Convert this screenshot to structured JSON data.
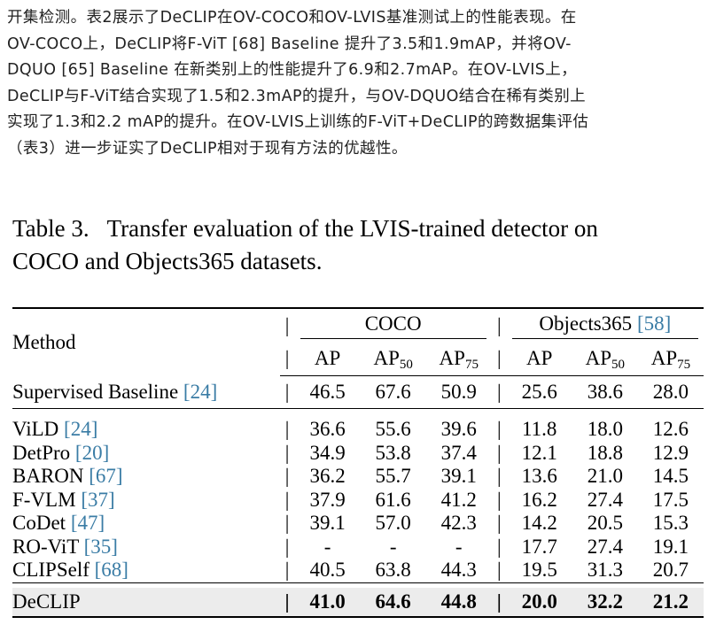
{
  "paragraph": [
    "开集检测。表2展示了DeCLIP在OV-COCO和OV-LVIS基准测试上的性能表现。在",
    "OV-COCO上，DeCLIP将F-ViT [68] Baseline 提升了3.5和1.9mAP，并将OV-",
    "DQUO [65] Baseline 在新类别上的性能提升了6.9和2.7mAP。在OV-LVIS上，",
    "DeCLIP与F-ViT结合实现了1.5和2.3mAP的提升，与OV-DQUO结合在稀有类别上",
    "实现了1.3和2.2 mAP的提升。在OV-LVIS上训练的F-ViT+DeCLIP的跨数据集评估",
    "（表3）进一步证实了DeCLIP相对于现有方法的优越性。"
  ],
  "caption": {
    "label": "Table 3.",
    "line1": "Transfer evaluation of the LVIS-trained detector on",
    "line2": "COCO and Objects365 datasets."
  },
  "table": {
    "method_header": "Method",
    "groups": [
      {
        "name": "COCO",
        "cite": ""
      },
      {
        "name": "Objects365 ",
        "cite": "[58]"
      }
    ],
    "columns": [
      {
        "base": "AP",
        "sub": ""
      },
      {
        "base": "AP",
        "sub": "50"
      },
      {
        "base": "AP",
        "sub": "75"
      },
      {
        "base": "AP",
        "sub": ""
      },
      {
        "base": "AP",
        "sub": "50"
      },
      {
        "base": "AP",
        "sub": "75"
      }
    ],
    "supervised": {
      "name": "Supervised Baseline ",
      "cite": "[24]",
      "values": [
        "46.5",
        "67.6",
        "50.9",
        "25.6",
        "38.6",
        "28.0"
      ]
    },
    "rows": [
      {
        "name": "ViLD ",
        "cite": "[24]",
        "values": [
          "36.6",
          "55.6",
          "39.6",
          "11.8",
          "18.0",
          "12.6"
        ]
      },
      {
        "name": "DetPro ",
        "cite": "[20]",
        "values": [
          "34.9",
          "53.8",
          "37.4",
          "12.1",
          "18.8",
          "12.9"
        ]
      },
      {
        "name": "BARON ",
        "cite": "[67]",
        "values": [
          "36.2",
          "55.7",
          "39.1",
          "13.6",
          "21.0",
          "14.5"
        ]
      },
      {
        "name": "F-VLM ",
        "cite": "[37]",
        "values": [
          "37.9",
          "61.6",
          "41.2",
          "16.2",
          "27.4",
          "17.5"
        ]
      },
      {
        "name": "CoDet ",
        "cite": "[47]",
        "values": [
          "39.1",
          "57.0",
          "42.3",
          "14.2",
          "20.5",
          "15.3"
        ]
      },
      {
        "name": "RO-ViT ",
        "cite": "[35]",
        "values": [
          "-",
          "-",
          "-",
          "17.7",
          "27.4",
          "19.1"
        ]
      },
      {
        "name": "CLIPSelf ",
        "cite": "[68]",
        "values": [
          "40.5",
          "63.8",
          "44.3",
          "19.5",
          "31.3",
          "20.7"
        ]
      }
    ],
    "ours": {
      "name": "DeCLIP",
      "values": [
        "41.0",
        "64.6",
        "44.8",
        "20.0",
        "32.2",
        "21.2"
      ]
    }
  }
}
